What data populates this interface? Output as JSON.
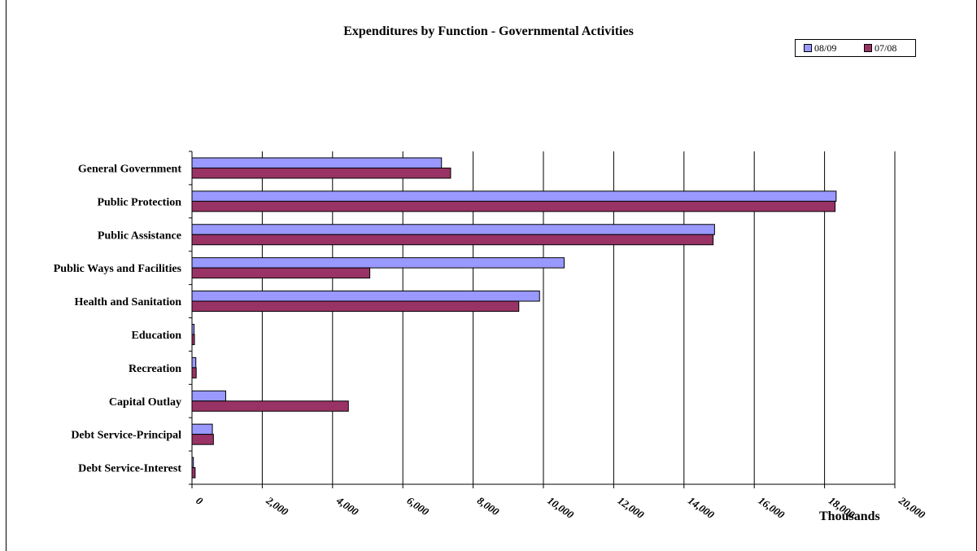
{
  "chart_data": {
    "type": "bar",
    "orientation": "horizontal",
    "title": "Expenditures by Function - Governmental Activities",
    "xlabel": "Thousands",
    "ylabel": "",
    "categories": [
      "General Government",
      "Public Protection",
      "Public Assistance",
      "Public Ways and Facilities",
      "Health and Sanitation",
      "Education",
      "Recreation",
      "Capital Outlay",
      "Debt Service-Principal",
      "Debt Service-Interest"
    ],
    "series": [
      {
        "name": "08/09",
        "color": "#9999ff",
        "values": [
          7100,
          18330,
          14870,
          10590,
          9890,
          60,
          110,
          960,
          580,
          40
        ]
      },
      {
        "name": "07/08",
        "color": "#993366",
        "values": [
          7360,
          18300,
          14830,
          5060,
          9300,
          70,
          120,
          4450,
          610,
          90
        ]
      }
    ],
    "xlim": [
      0,
      20000
    ],
    "xticks": [
      "0",
      "2,000",
      "4,000",
      "6,000",
      "8,000",
      "10,000",
      "12,000",
      "14,000",
      "16,000",
      "18,000",
      "20,000"
    ],
    "grid": "vertical",
    "legend_position": "top-right"
  }
}
